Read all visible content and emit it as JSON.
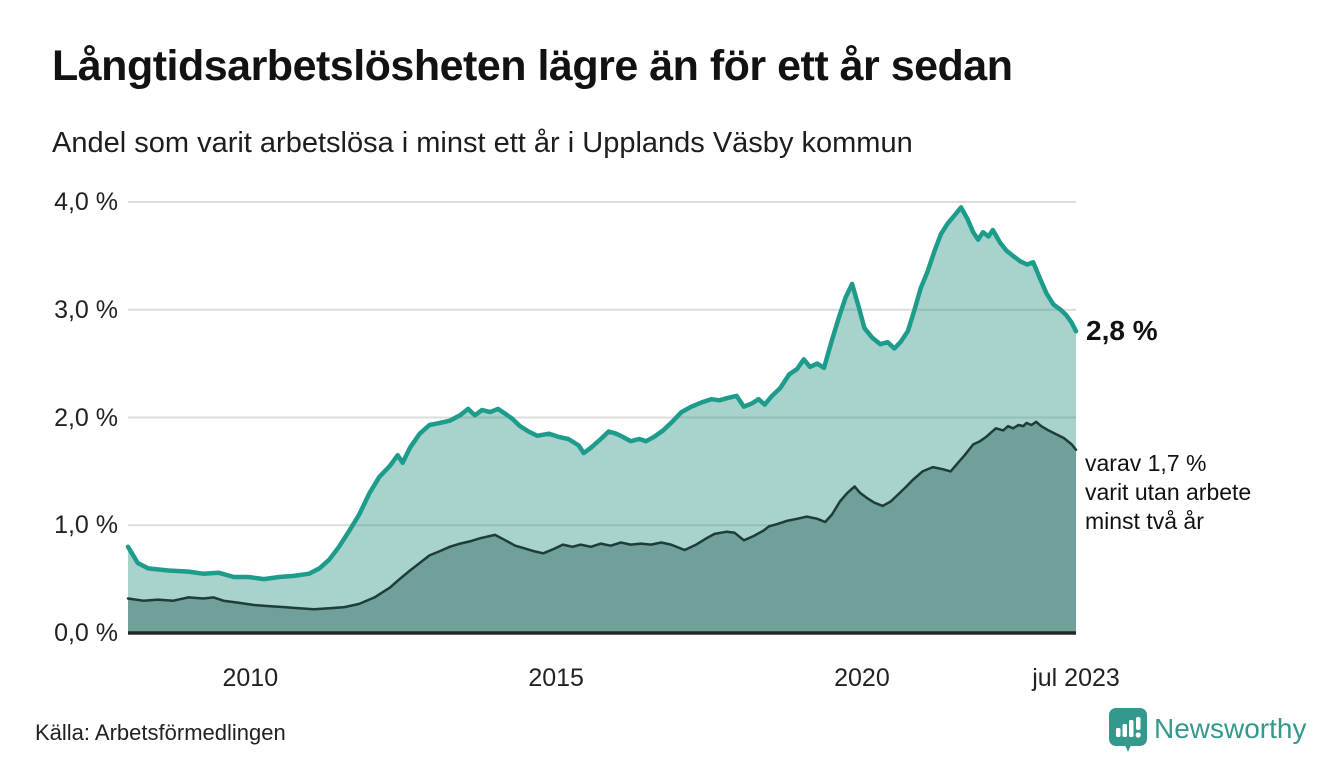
{
  "header": {
    "title": "Långtidsarbetslösheten lägre än för ett år sedan",
    "subtitle": "Andel som varit arbetslösa i minst ett år i Upplands Väsby kommun"
  },
  "footer": {
    "source": "Källa: Arbetsförmedlingen",
    "brand": "Newsworthy"
  },
  "colors": {
    "line_primary": "#1e9c8b",
    "fill_primary": "rgba(47,148,133,0.42)",
    "line_secondary": "#1f3d38",
    "fill_secondary": "#6fa09a",
    "grid": "#dcdcdc",
    "baseline": "#23282a",
    "brand_teal": "#35988c"
  },
  "chart_data": {
    "type": "area",
    "title": "Långtidsarbetslösheten lägre än för ett år sedan",
    "subtitle": "Andel som varit arbetslösa i minst ett år i Upplands Väsby kommun",
    "source": "Källa: Arbetsförmedlingen",
    "unit": "%",
    "grid": true,
    "legend_position": "none",
    "x_domain": [
      2008.0,
      2023.5
    ],
    "y_domain": [
      0,
      4
    ],
    "y_ticks": [
      {
        "value": 0,
        "label": "0,0 %"
      },
      {
        "value": 1,
        "label": "1,0 %"
      },
      {
        "value": 2,
        "label": "2,0 %"
      },
      {
        "value": 3,
        "label": "3,0 %"
      },
      {
        "value": 4,
        "label": "4,0 %"
      }
    ],
    "x_ticks": [
      {
        "value": 2010,
        "label": "2010"
      },
      {
        "value": 2015,
        "label": "2015"
      },
      {
        "value": 2020,
        "label": "2020"
      },
      {
        "value": 2023.5,
        "label": "jul 2023"
      }
    ],
    "annotations": {
      "latest_total": "2,8 %",
      "secondary": "varav 1,7 %\nvarit utan arbete\nminst två år"
    },
    "series": [
      {
        "name": "Arbetslösa minst ett år",
        "color": "#1e9c8b",
        "fill": "rgba(47,148,133,0.42)",
        "stroke_width": 4.5,
        "points": [
          [
            2008.0,
            0.8
          ],
          [
            2008.16,
            0.65
          ],
          [
            2008.33,
            0.6
          ],
          [
            2008.66,
            0.58
          ],
          [
            2008.99,
            0.57
          ],
          [
            2009.23,
            0.55
          ],
          [
            2009.48,
            0.56
          ],
          [
            2009.73,
            0.52
          ],
          [
            2009.97,
            0.52
          ],
          [
            2010.22,
            0.5
          ],
          [
            2010.47,
            0.52
          ],
          [
            2010.71,
            0.53
          ],
          [
            2010.96,
            0.55
          ],
          [
            2011.13,
            0.6
          ],
          [
            2011.29,
            0.68
          ],
          [
            2011.45,
            0.8
          ],
          [
            2011.62,
            0.95
          ],
          [
            2011.78,
            1.1
          ],
          [
            2011.95,
            1.3
          ],
          [
            2012.11,
            1.45
          ],
          [
            2012.28,
            1.55
          ],
          [
            2012.41,
            1.65
          ],
          [
            2012.49,
            1.58
          ],
          [
            2012.61,
            1.72
          ],
          [
            2012.77,
            1.85
          ],
          [
            2012.93,
            1.93
          ],
          [
            2013.1,
            1.95
          ],
          [
            2013.26,
            1.97
          ],
          [
            2013.43,
            2.02
          ],
          [
            2013.56,
            2.08
          ],
          [
            2013.67,
            2.02
          ],
          [
            2013.79,
            2.07
          ],
          [
            2013.92,
            2.05
          ],
          [
            2014.05,
            2.08
          ],
          [
            2014.18,
            2.03
          ],
          [
            2014.28,
            1.99
          ],
          [
            2014.41,
            1.92
          ],
          [
            2014.55,
            1.87
          ],
          [
            2014.69,
            1.83
          ],
          [
            2014.88,
            1.85
          ],
          [
            2015.04,
            1.82
          ],
          [
            2015.2,
            1.8
          ],
          [
            2015.37,
            1.74
          ],
          [
            2015.45,
            1.67
          ],
          [
            2015.57,
            1.72
          ],
          [
            2015.73,
            1.8
          ],
          [
            2015.86,
            1.87
          ],
          [
            2015.98,
            1.85
          ],
          [
            2016.09,
            1.82
          ],
          [
            2016.22,
            1.78
          ],
          [
            2016.36,
            1.8
          ],
          [
            2016.47,
            1.78
          ],
          [
            2016.6,
            1.82
          ],
          [
            2016.75,
            1.88
          ],
          [
            2016.88,
            1.95
          ],
          [
            2017.05,
            2.05
          ],
          [
            2017.21,
            2.1
          ],
          [
            2017.38,
            2.14
          ],
          [
            2017.54,
            2.17
          ],
          [
            2017.67,
            2.16
          ],
          [
            2017.8,
            2.18
          ],
          [
            2017.95,
            2.2
          ],
          [
            2018.07,
            2.1
          ],
          [
            2018.2,
            2.13
          ],
          [
            2018.31,
            2.17
          ],
          [
            2018.41,
            2.12
          ],
          [
            2018.53,
            2.2
          ],
          [
            2018.66,
            2.27
          ],
          [
            2018.81,
            2.4
          ],
          [
            2018.94,
            2.45
          ],
          [
            2019.05,
            2.54
          ],
          [
            2019.15,
            2.47
          ],
          [
            2019.27,
            2.5
          ],
          [
            2019.38,
            2.46
          ],
          [
            2019.51,
            2.72
          ],
          [
            2019.63,
            2.94
          ],
          [
            2019.73,
            3.11
          ],
          [
            2019.84,
            3.24
          ],
          [
            2019.96,
            3.0
          ],
          [
            2020.04,
            2.83
          ],
          [
            2020.17,
            2.74
          ],
          [
            2020.3,
            2.68
          ],
          [
            2020.42,
            2.7
          ],
          [
            2020.53,
            2.64
          ],
          [
            2020.63,
            2.7
          ],
          [
            2020.75,
            2.8
          ],
          [
            2020.86,
            3.0
          ],
          [
            2020.96,
            3.2
          ],
          [
            2021.07,
            3.35
          ],
          [
            2021.19,
            3.55
          ],
          [
            2021.29,
            3.7
          ],
          [
            2021.4,
            3.8
          ],
          [
            2021.52,
            3.88
          ],
          [
            2021.62,
            3.95
          ],
          [
            2021.72,
            3.85
          ],
          [
            2021.82,
            3.72
          ],
          [
            2021.9,
            3.65
          ],
          [
            2021.98,
            3.72
          ],
          [
            2022.07,
            3.68
          ],
          [
            2022.14,
            3.74
          ],
          [
            2022.26,
            3.62
          ],
          [
            2022.36,
            3.55
          ],
          [
            2022.47,
            3.5
          ],
          [
            2022.59,
            3.45
          ],
          [
            2022.7,
            3.42
          ],
          [
            2022.8,
            3.44
          ],
          [
            2022.92,
            3.28
          ],
          [
            2023.02,
            3.15
          ],
          [
            2023.13,
            3.05
          ],
          [
            2023.25,
            3.0
          ],
          [
            2023.34,
            2.95
          ],
          [
            2023.43,
            2.88
          ],
          [
            2023.5,
            2.8
          ]
        ]
      },
      {
        "name": "Varav utan arbete minst två år",
        "color": "#1f3d38",
        "fill": "#6fa09a",
        "stroke_width": 2.5,
        "points": [
          [
            2008.0,
            0.32
          ],
          [
            2008.25,
            0.3
          ],
          [
            2008.49,
            0.31
          ],
          [
            2008.74,
            0.3
          ],
          [
            2008.99,
            0.33
          ],
          [
            2009.23,
            0.32
          ],
          [
            2009.4,
            0.33
          ],
          [
            2009.56,
            0.3
          ],
          [
            2009.81,
            0.28
          ],
          [
            2010.06,
            0.26
          ],
          [
            2010.3,
            0.25
          ],
          [
            2010.55,
            0.24
          ],
          [
            2010.8,
            0.23
          ],
          [
            2011.04,
            0.22
          ],
          [
            2011.29,
            0.23
          ],
          [
            2011.54,
            0.24
          ],
          [
            2011.78,
            0.27
          ],
          [
            2012.03,
            0.33
          ],
          [
            2012.28,
            0.42
          ],
          [
            2012.44,
            0.5
          ],
          [
            2012.61,
            0.58
          ],
          [
            2012.77,
            0.65
          ],
          [
            2012.93,
            0.72
          ],
          [
            2013.1,
            0.76
          ],
          [
            2013.26,
            0.8
          ],
          [
            2013.43,
            0.83
          ],
          [
            2013.59,
            0.85
          ],
          [
            2013.76,
            0.88
          ],
          [
            2014.0,
            0.91
          ],
          [
            2014.17,
            0.86
          ],
          [
            2014.33,
            0.81
          ],
          [
            2014.46,
            0.79
          ],
          [
            2014.63,
            0.76
          ],
          [
            2014.79,
            0.74
          ],
          [
            2014.96,
            0.78
          ],
          [
            2015.11,
            0.82
          ],
          [
            2015.27,
            0.8
          ],
          [
            2015.4,
            0.82
          ],
          [
            2015.57,
            0.8
          ],
          [
            2015.73,
            0.83
          ],
          [
            2015.89,
            0.81
          ],
          [
            2016.06,
            0.84
          ],
          [
            2016.22,
            0.82
          ],
          [
            2016.39,
            0.83
          ],
          [
            2016.55,
            0.82
          ],
          [
            2016.72,
            0.84
          ],
          [
            2016.88,
            0.82
          ],
          [
            2017.1,
            0.77
          ],
          [
            2017.29,
            0.82
          ],
          [
            2017.46,
            0.88
          ],
          [
            2017.59,
            0.92
          ],
          [
            2017.79,
            0.94
          ],
          [
            2017.92,
            0.93
          ],
          [
            2018.07,
            0.86
          ],
          [
            2018.23,
            0.9
          ],
          [
            2018.39,
            0.95
          ],
          [
            2018.48,
            0.99
          ],
          [
            2018.61,
            1.01
          ],
          [
            2018.77,
            1.04
          ],
          [
            2018.94,
            1.06
          ],
          [
            2019.1,
            1.08
          ],
          [
            2019.27,
            1.06
          ],
          [
            2019.4,
            1.03
          ],
          [
            2019.51,
            1.1
          ],
          [
            2019.64,
            1.22
          ],
          [
            2019.76,
            1.3
          ],
          [
            2019.88,
            1.36
          ],
          [
            2019.97,
            1.3
          ],
          [
            2020.09,
            1.25
          ],
          [
            2020.2,
            1.21
          ],
          [
            2020.34,
            1.18
          ],
          [
            2020.47,
            1.22
          ],
          [
            2020.58,
            1.28
          ],
          [
            2020.71,
            1.35
          ],
          [
            2020.83,
            1.42
          ],
          [
            2020.99,
            1.5
          ],
          [
            2021.16,
            1.54
          ],
          [
            2021.32,
            1.52
          ],
          [
            2021.45,
            1.5
          ],
          [
            2021.57,
            1.58
          ],
          [
            2021.68,
            1.65
          ],
          [
            2021.82,
            1.75
          ],
          [
            2021.93,
            1.78
          ],
          [
            2022.03,
            1.82
          ],
          [
            2022.11,
            1.86
          ],
          [
            2022.19,
            1.9
          ],
          [
            2022.31,
            1.88
          ],
          [
            2022.39,
            1.92
          ],
          [
            2022.47,
            1.9
          ],
          [
            2022.56,
            1.93
          ],
          [
            2022.64,
            1.92
          ],
          [
            2022.69,
            1.95
          ],
          [
            2022.77,
            1.93
          ],
          [
            2022.85,
            1.96
          ],
          [
            2022.93,
            1.92
          ],
          [
            2023.05,
            1.88
          ],
          [
            2023.16,
            1.85
          ],
          [
            2023.3,
            1.81
          ],
          [
            2023.43,
            1.75
          ],
          [
            2023.5,
            1.7
          ]
        ]
      }
    ]
  }
}
